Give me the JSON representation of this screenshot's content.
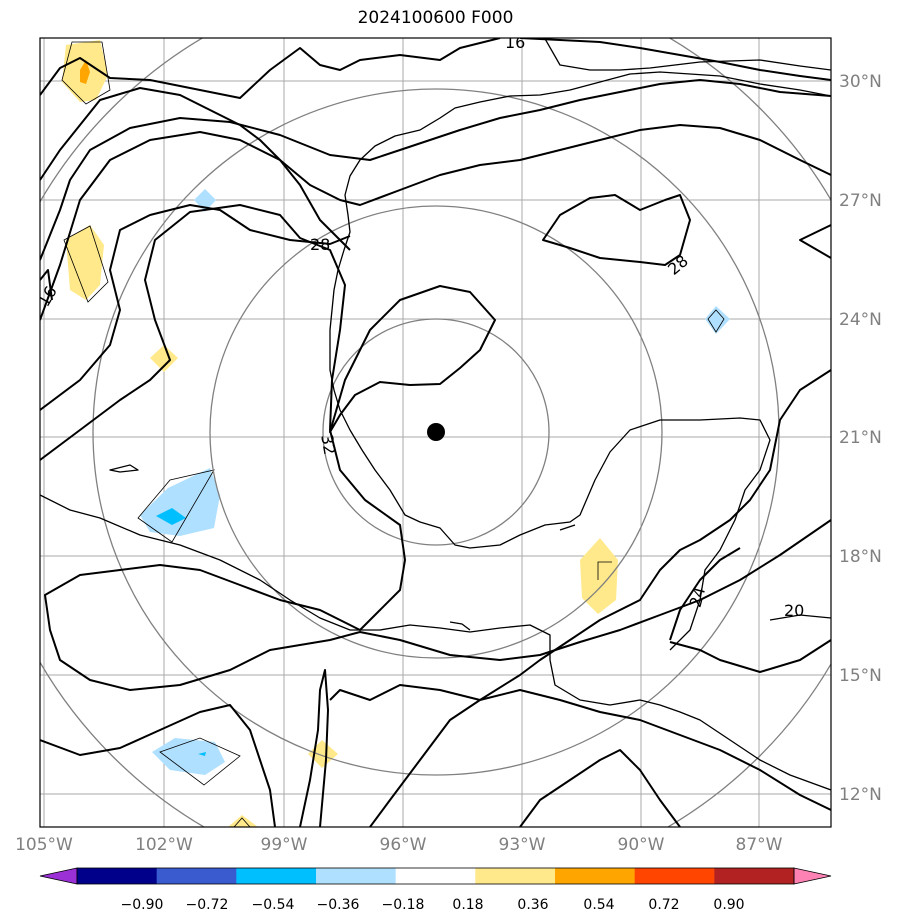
{
  "title": "2024100600 F000",
  "lon_labels": [
    "105°W",
    "102°W",
    "99°W",
    "96°W",
    "93°W",
    "90°W",
    "87°W"
  ],
  "lat_labels": [
    "30°N",
    "27°N",
    "24°N",
    "21°N",
    "18°N",
    "15°N",
    "12°N"
  ],
  "contour_labels": [
    "16",
    "16",
    "28",
    "28",
    "32",
    "24",
    "20"
  ],
  "colorbar": {
    "tick_labels": [
      "−0.90",
      "−0.72",
      "−0.54",
      "−0.36",
      "−0.18",
      "0.18",
      "0.36",
      "0.54",
      "0.72",
      "0.90"
    ],
    "colors": [
      "#9b30d6",
      "#00008b",
      "#3a5bd0",
      "#00bfff",
      "#b0e0ff",
      "#ffffff",
      "#ffe98a",
      "#ffa500",
      "#ff4500",
      "#b22222",
      "#ff82b4"
    ]
  },
  "center_marker": {
    "lon": -95.2,
    "lat": 21.1
  },
  "colors": {
    "grid": "#aaaaaa",
    "axis_labels": "#808080",
    "range_rings": "#808080"
  }
}
